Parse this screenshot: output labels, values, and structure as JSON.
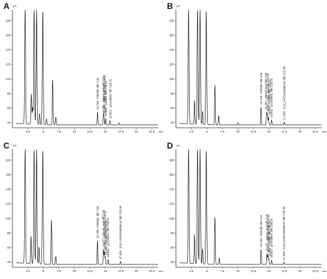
{
  "chart_data": [
    {
      "panel": "A",
      "type": "line",
      "y_unit": "pA",
      "x_unit": "min",
      "xlim": [
        0,
        23.5
      ],
      "ylim": [
        35,
        195
      ],
      "x_ticks": [
        "2.5",
        "5",
        "7.5",
        "10",
        "12.5",
        "15",
        "17.5",
        "20",
        "22.5"
      ],
      "y_ticks": [
        "40",
        "60",
        "80",
        "100",
        "120",
        "140",
        "160",
        "180"
      ],
      "peaks": [
        {
          "rt": 2.05,
          "height": 195,
          "width": 0.07
        },
        {
          "rt": 3.05,
          "height": 78,
          "width": 0.06
        },
        {
          "rt": 3.25,
          "height": 60,
          "width": 0.06
        },
        {
          "rt": 3.5,
          "height": 195,
          "width": 0.07
        },
        {
          "rt": 3.9,
          "height": 195,
          "width": 0.07
        },
        {
          "rt": 4.4,
          "height": 52,
          "width": 0.06
        },
        {
          "rt": 4.9,
          "height": 195,
          "width": 0.07
        },
        {
          "rt": 5.5,
          "height": 45,
          "width": 0.06
        },
        {
          "rt": 6.5,
          "height": 100,
          "width": 0.06
        },
        {
          "rt": 7.0,
          "height": 48,
          "width": 0.06
        },
        {
          "rt": 13.75,
          "height": 55,
          "width": 0.05
        },
        {
          "rt": 14.68,
          "height": 50,
          "width": 0.05
        },
        {
          "rt": 14.78,
          "height": 50,
          "width": 0.05
        },
        {
          "rt": 15.05,
          "height": 46,
          "width": 0.05
        },
        {
          "rt": 15.75,
          "height": 43,
          "width": 0.05
        },
        {
          "rt": 17.2,
          "height": 40,
          "width": 0.05
        }
      ],
      "peak_labels": [
        {
          "rt": 13.75,
          "text": "13.749 - Palmitic ME C16"
        },
        {
          "rt": 14.7,
          "text": "14.780 - Stearic acid ME C18"
        },
        {
          "rt": 14.85,
          "text": "14.930 - Oleic acid ME C18:1C"
        },
        {
          "rt": 15.1,
          "text": "15.451 - Linoleic ME C18:2c"
        },
        {
          "rt": 15.8,
          "text": "15.862 - g-Linolenic ME C18:3c"
        }
      ]
    },
    {
      "panel": "B",
      "type": "line",
      "y_unit": "pA",
      "x_unit": "min",
      "xlim": [
        0,
        23.5
      ],
      "ylim": [
        35,
        195
      ],
      "x_ticks": [
        "2.5",
        "5",
        "7.5",
        "10",
        "12.5",
        "15",
        "17.5",
        "20",
        "22.5"
      ],
      "y_ticks": [
        "40",
        "60",
        "80",
        "100",
        "120",
        "140",
        "160",
        "180"
      ],
      "peaks": [
        {
          "rt": 2.05,
          "height": 195,
          "width": 0.07
        },
        {
          "rt": 3.0,
          "height": 70,
          "width": 0.06
        },
        {
          "rt": 3.5,
          "height": 195,
          "width": 0.07
        },
        {
          "rt": 3.9,
          "height": 195,
          "width": 0.07
        },
        {
          "rt": 4.3,
          "height": 55,
          "width": 0.06
        },
        {
          "rt": 4.9,
          "height": 195,
          "width": 0.07
        },
        {
          "rt": 6.3,
          "height": 92,
          "width": 0.06
        },
        {
          "rt": 6.9,
          "height": 50,
          "width": 0.06
        },
        {
          "rt": 10.0,
          "height": 40,
          "width": 0.05
        },
        {
          "rt": 13.74,
          "height": 62,
          "width": 0.05
        },
        {
          "rt": 14.65,
          "height": 55,
          "width": 0.05
        },
        {
          "rt": 14.78,
          "height": 52,
          "width": 0.05
        },
        {
          "rt": 14.95,
          "height": 48,
          "width": 0.05
        },
        {
          "rt": 15.45,
          "height": 44,
          "width": 0.05
        },
        {
          "rt": 17.5,
          "height": 41,
          "width": 0.05
        }
      ],
      "peak_labels": [
        {
          "rt": 13.74,
          "text": "13.740 - Palmitic ME C16"
        },
        {
          "rt": 14.55,
          "text": "14.782 - Stearic acid ME C18"
        },
        {
          "rt": 14.85,
          "text": "14.930 - Oleic acid ME C18:1C"
        },
        {
          "rt": 15.1,
          "text": "15.451 - Linoleic ME C18:2c"
        },
        {
          "rt": 15.45,
          "text": "15.841 - g-Linolenic ME C18:3c"
        },
        {
          "rt": 17.5,
          "text": "17.456 - 8,11,14-Eicosatrienoic ME C20:3n"
        }
      ]
    },
    {
      "panel": "C",
      "type": "line",
      "y_unit": "pA",
      "x_unit": "min",
      "xlim": [
        0,
        23.5
      ],
      "ylim": [
        35,
        195
      ],
      "x_ticks": [
        "2.5",
        "5",
        "7.5",
        "10",
        "12.5",
        "15",
        "17.5",
        "20",
        "22.5"
      ],
      "y_ticks": [
        "40",
        "60",
        "80",
        "100",
        "120",
        "140",
        "160",
        "180"
      ],
      "peaks": [
        {
          "rt": 2.05,
          "height": 195,
          "width": 0.07
        },
        {
          "rt": 3.0,
          "height": 75,
          "width": 0.06
        },
        {
          "rt": 3.5,
          "height": 195,
          "width": 0.07
        },
        {
          "rt": 3.9,
          "height": 195,
          "width": 0.07
        },
        {
          "rt": 4.3,
          "height": 60,
          "width": 0.06
        },
        {
          "rt": 4.9,
          "height": 195,
          "width": 0.07
        },
        {
          "rt": 6.3,
          "height": 98,
          "width": 0.06
        },
        {
          "rt": 7.0,
          "height": 48,
          "width": 0.06
        },
        {
          "rt": 13.74,
          "height": 70,
          "width": 0.05
        },
        {
          "rt": 14.7,
          "height": 58,
          "width": 0.05
        },
        {
          "rt": 14.85,
          "height": 55,
          "width": 0.05
        },
        {
          "rt": 15.0,
          "height": 47,
          "width": 0.05
        },
        {
          "rt": 15.45,
          "height": 44,
          "width": 0.05
        },
        {
          "rt": 17.45,
          "height": 41,
          "width": 0.05
        }
      ],
      "peak_labels": [
        {
          "rt": 13.74,
          "text": "13.749 - Palmitic ME C16"
        },
        {
          "rt": 14.7,
          "text": "14.777 - Stearic acid ME C18"
        },
        {
          "rt": 14.9,
          "text": "14.950 - Oleic acid ME C18:1C"
        },
        {
          "rt": 15.1,
          "text": "15.452 - Linoleic ME C18:2c"
        },
        {
          "rt": 15.45,
          "text": "15.841 - g-Linolenic ME C18:3c"
        },
        {
          "rt": 17.45,
          "text": "17.456 - 8,11,14-Eicosatrienoic ME C20:3n"
        }
      ]
    },
    {
      "panel": "D",
      "type": "line",
      "y_unit": "pA",
      "x_unit": "min",
      "xlim": [
        0,
        23.5
      ],
      "ylim": [
        35,
        195
      ],
      "x_ticks": [
        "2.5",
        "5",
        "7.5",
        "10",
        "12.5",
        "15",
        "17.5",
        "20",
        "22.5"
      ],
      "y_ticks": [
        "40",
        "60",
        "80",
        "100",
        "120",
        "140",
        "160",
        "180"
      ],
      "peaks": [
        {
          "rt": 2.05,
          "height": 195,
          "width": 0.07
        },
        {
          "rt": 3.0,
          "height": 78,
          "width": 0.06
        },
        {
          "rt": 3.5,
          "height": 195,
          "width": 0.07
        },
        {
          "rt": 3.9,
          "height": 195,
          "width": 0.07
        },
        {
          "rt": 4.3,
          "height": 58,
          "width": 0.06
        },
        {
          "rt": 4.9,
          "height": 195,
          "width": 0.07
        },
        {
          "rt": 6.3,
          "height": 102,
          "width": 0.06
        },
        {
          "rt": 7.0,
          "height": 46,
          "width": 0.06
        },
        {
          "rt": 13.74,
          "height": 58,
          "width": 0.05
        },
        {
          "rt": 14.7,
          "height": 52,
          "width": 0.05
        },
        {
          "rt": 14.85,
          "height": 50,
          "width": 0.05
        },
        {
          "rt": 15.0,
          "height": 45,
          "width": 0.05
        },
        {
          "rt": 15.45,
          "height": 43,
          "width": 0.05
        },
        {
          "rt": 17.45,
          "height": 40,
          "width": 0.05
        }
      ],
      "peak_labels": [
        {
          "rt": 13.74,
          "text": "13.748 - Palmitic ME C16"
        },
        {
          "rt": 14.7,
          "text": "14.776 - Stearic acid ME C18"
        },
        {
          "rt": 14.9,
          "text": "14.933 - Oleic acid ME C18:1C"
        },
        {
          "rt": 15.1,
          "text": "15.451 - Linoleic ME C18:2c"
        },
        {
          "rt": 15.45,
          "text": "15.842 - g-Linolenic ME C18:3c"
        },
        {
          "rt": 17.45,
          "text": "17.456 - 8,11,14-Eicosatrienoic ME C20:3n"
        }
      ]
    }
  ],
  "style": {
    "trace_color": "#1a1a1a",
    "axis_color": "#333333",
    "background": "#ffffff"
  }
}
